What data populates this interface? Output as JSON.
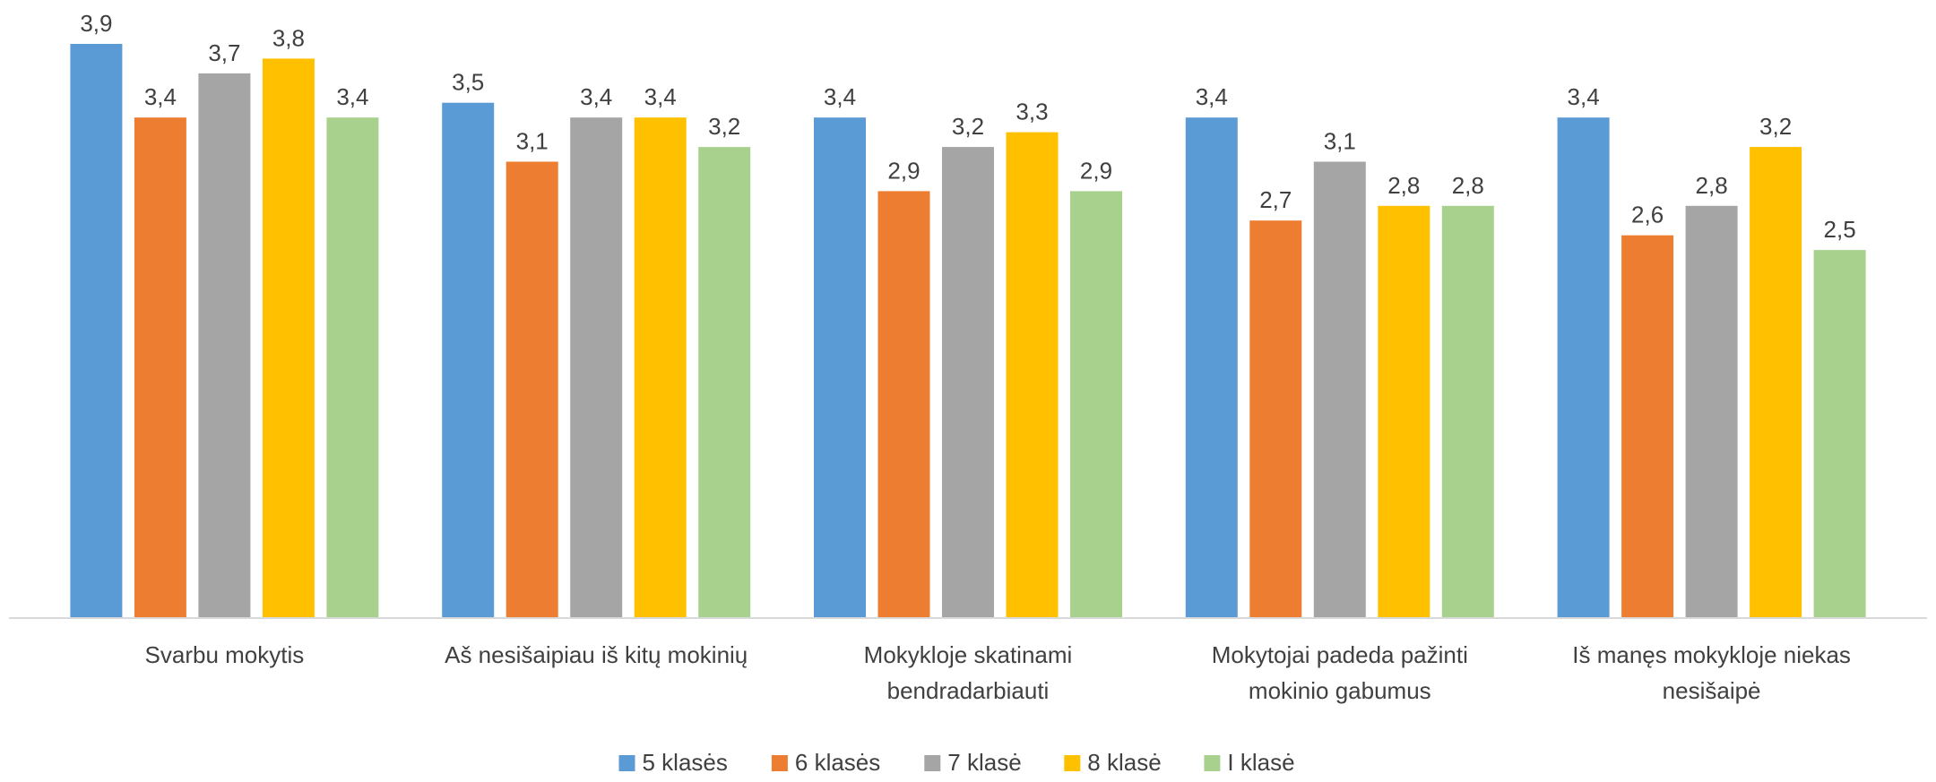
{
  "chart_data": {
    "type": "bar",
    "title": "",
    "xlabel": "",
    "ylabel": "",
    "ylim": [
      0,
      4.2
    ],
    "grid": false,
    "legend_position": "bottom-center",
    "categories": [
      [
        "Svarbu mokytis"
      ],
      [
        "Aš nesišaipiau iš kitų mokinių"
      ],
      [
        "Mokykloje skatinami",
        "bendradarbiauti"
      ],
      [
        "Mokytojai padeda pažinti",
        "mokinio gabumus"
      ],
      [
        "Iš manęs mokykloje niekas",
        "nesišaipė"
      ]
    ],
    "series": [
      {
        "name": "5 klasės",
        "color": "#5B9BD5",
        "values": [
          3.9,
          3.5,
          3.4,
          3.4,
          3.4
        ],
        "labels": [
          "3,9",
          "3,5",
          "3,4",
          "3,4",
          "3,4"
        ]
      },
      {
        "name": "6 klasės",
        "color": "#ED7D31",
        "values": [
          3.4,
          3.1,
          2.9,
          2.7,
          2.6
        ],
        "labels": [
          "3,4",
          "3,1",
          "2,9",
          "2,7",
          "2,6"
        ]
      },
      {
        "name": "7 klasė",
        "color": "#A5A5A5",
        "values": [
          3.7,
          3.4,
          3.2,
          3.1,
          2.8
        ],
        "labels": [
          "3,7",
          "3,4",
          "3,2",
          "3,1",
          "2,8"
        ]
      },
      {
        "name": "8 klasė",
        "color": "#FFC000",
        "values": [
          3.8,
          3.4,
          3.3,
          2.8,
          3.2
        ],
        "labels": [
          "3,8",
          "3,4",
          "3,3",
          "2,8",
          "3,2"
        ]
      },
      {
        "name": "I klasė",
        "color": "#A9D18E",
        "values": [
          3.4,
          3.2,
          2.9,
          2.8,
          2.5
        ],
        "labels": [
          "3,4",
          "3,2",
          "2,9",
          "2,8",
          "2,5"
        ]
      }
    ]
  },
  "colors": {
    "axis": "#D9D9D9",
    "text": "#404040",
    "background": "#FFFFFF"
  }
}
